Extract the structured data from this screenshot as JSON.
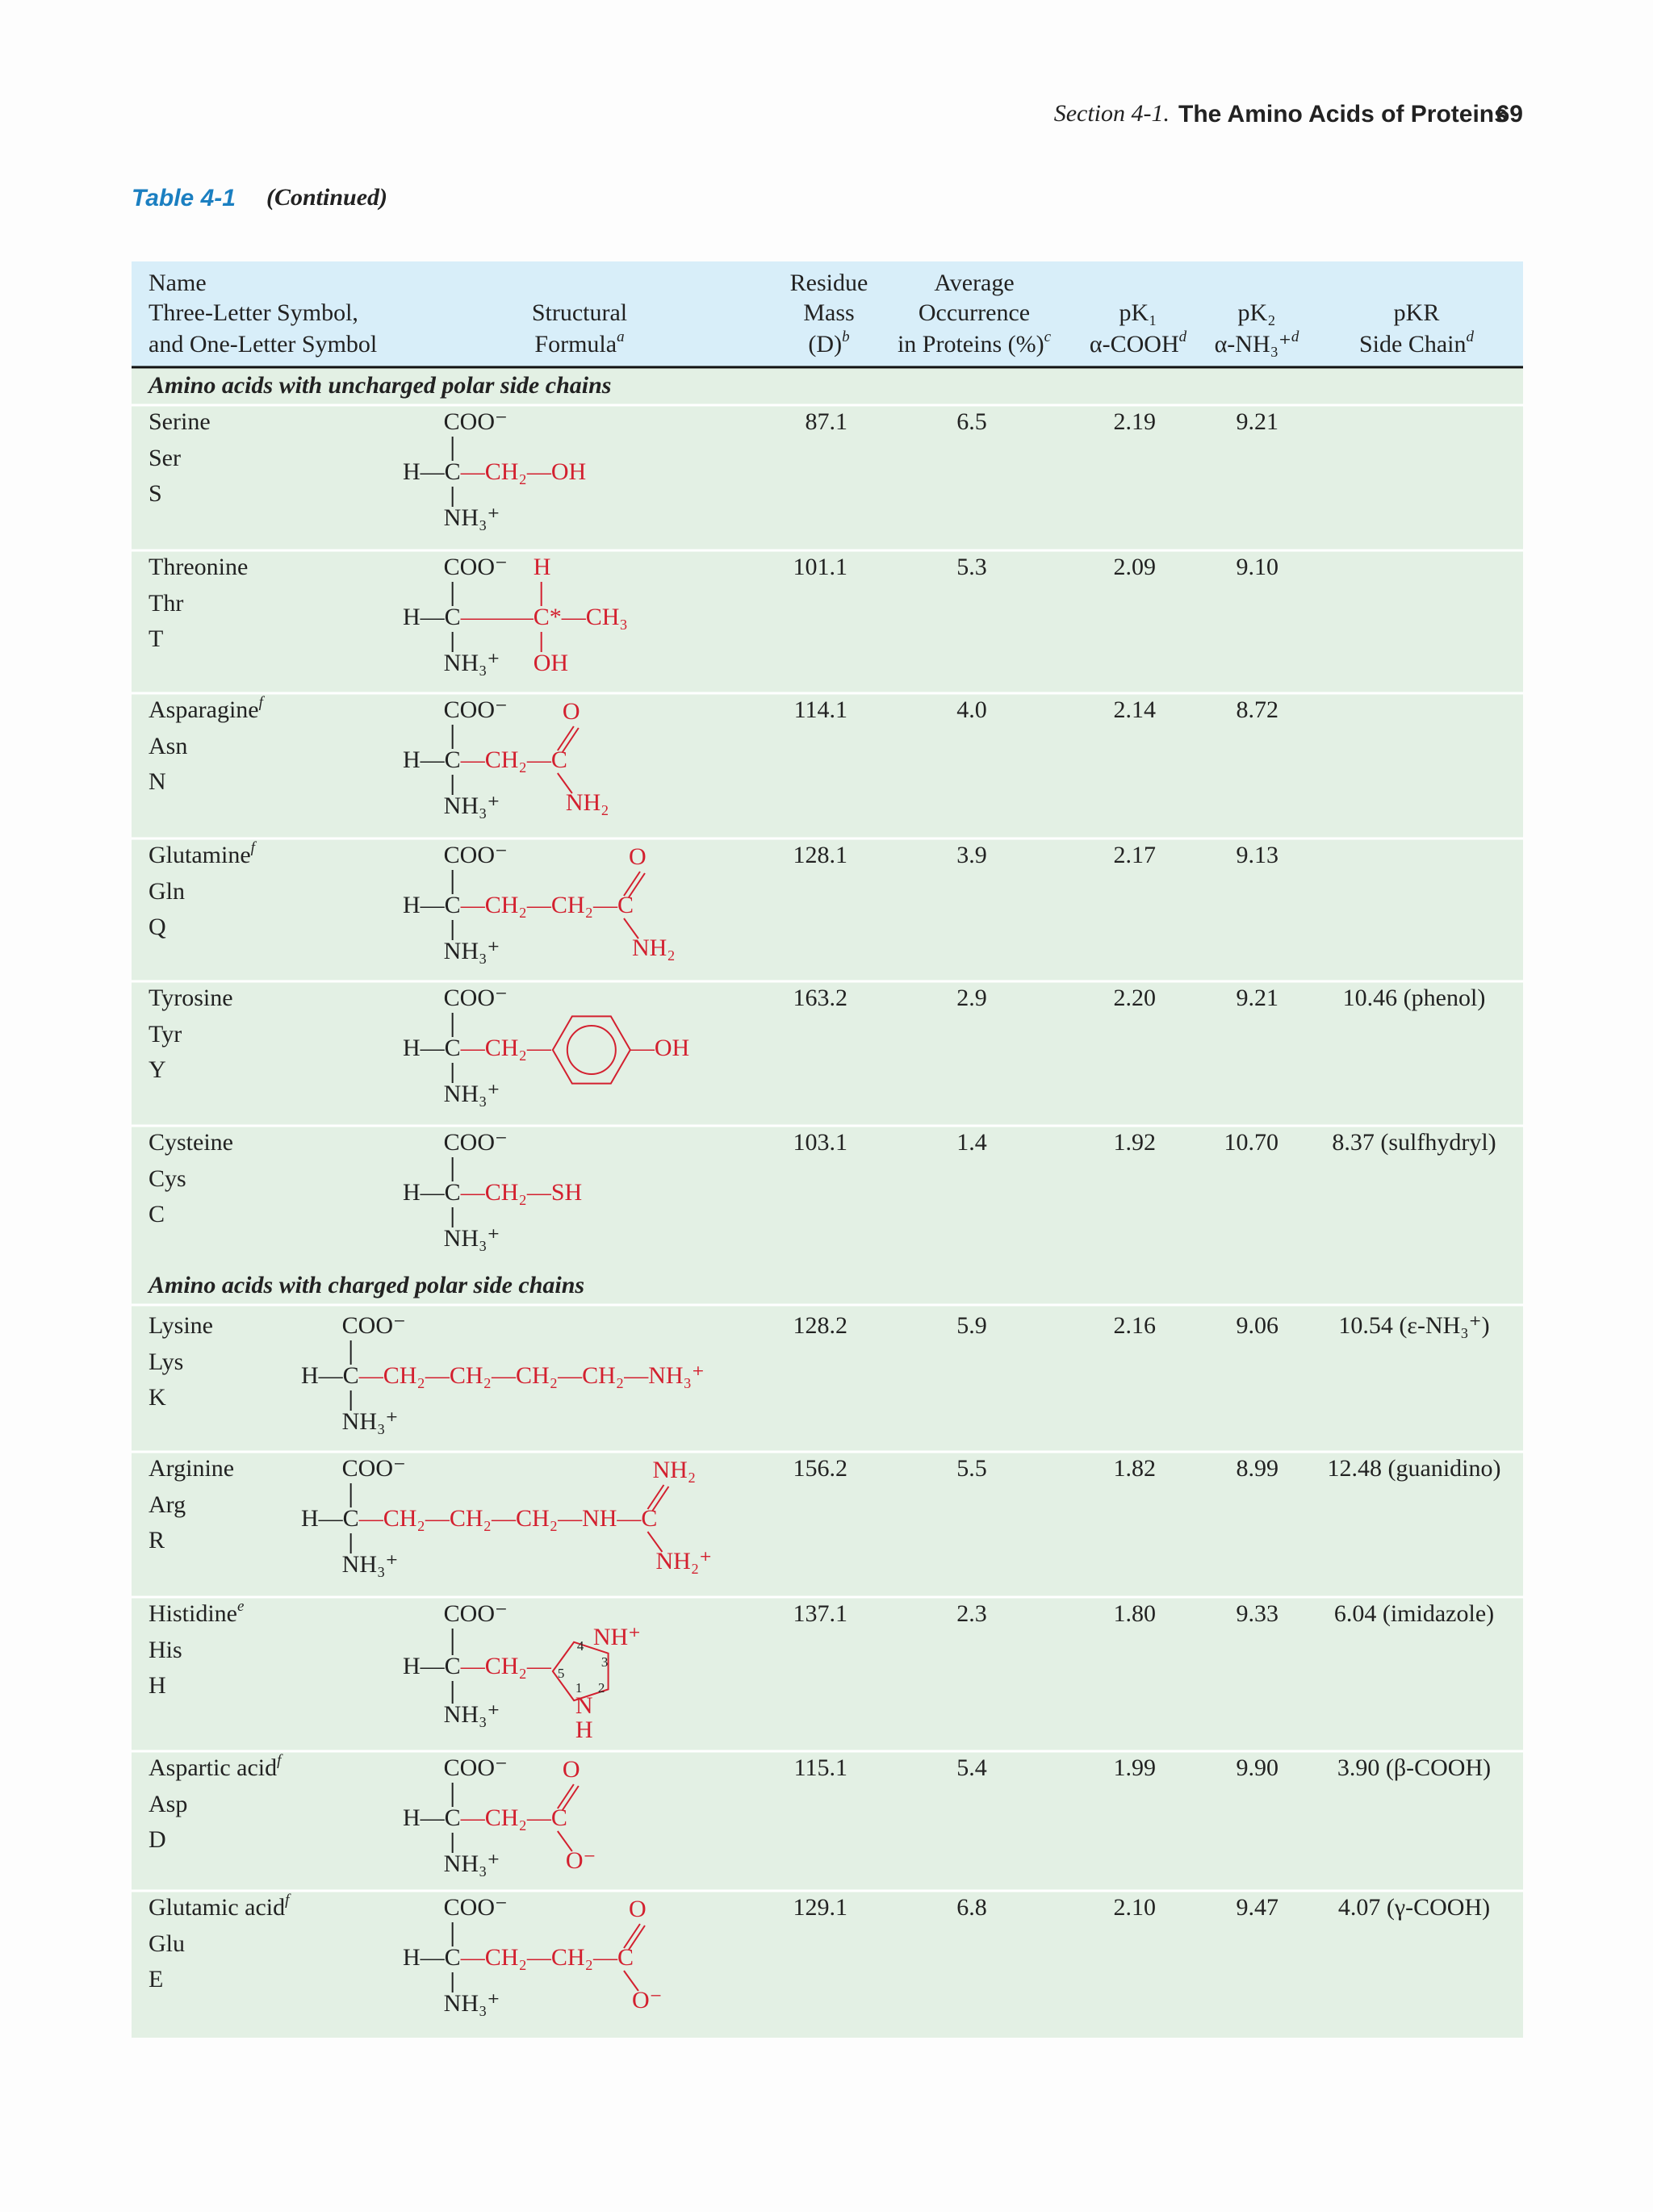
{
  "header": {
    "section": "Section 4-1.",
    "chapter": "The Amino Acids of Proteins",
    "page": "69"
  },
  "table": {
    "label": "Table 4-1",
    "caption": "(Continued)",
    "columns": [
      {
        "lines": [
          "Name",
          "Three-Letter Symbol,",
          "and One-Letter Symbol"
        ]
      },
      {
        "lines": [
          "Structural",
          "Formula"
        ],
        "note": "a"
      },
      {
        "lines": [
          "Residue",
          "Mass",
          "(D)"
        ],
        "note": "b"
      },
      {
        "lines": [
          "Average",
          "Occurrence",
          "in Proteins (%)"
        ],
        "note": "c"
      },
      {
        "lines": [
          "pK₁",
          "α-COOH"
        ],
        "note": "d"
      },
      {
        "lines": [
          "pK₂",
          "α-NH₃⁺"
        ],
        "note": "d"
      },
      {
        "lines": [
          "pKR",
          "Side Chain"
        ],
        "note": "d"
      }
    ],
    "sections": [
      {
        "title": "Amino acids with uncharged polar side chains",
        "rows": [
          {
            "name": "Serine",
            "three": "Ser",
            "one": "S",
            "formula": {
              "top": "COO⁻",
              "core": "H—C",
              "chain": "—CH₂—OH",
              "bottom": "NH₃⁺"
            },
            "mass": "87.1",
            "occurrence": "6.5",
            "pk1": "2.19",
            "pk2": "9.21"
          },
          {
            "name": "Threonine",
            "three": "Thr",
            "one": "T",
            "formula": {
              "top": "COO⁻",
              "core": "H—C",
              "chain": "———C*—CH₃",
              "bottom": "NH₃⁺",
              "upper": "H",
              "lower": "OH"
            },
            "mass": "101.1",
            "occurrence": "5.3",
            "pk1": "2.09",
            "pk2": "9.10"
          },
          {
            "name": "Asparagine",
            "note": "f",
            "three": "Asn",
            "one": "N",
            "formula": {
              "top": "COO⁻",
              "core": "H—C",
              "chain": "—CH₂—C",
              "bottom": "NH₃⁺",
              "upper": "O",
              "lower": "NH₂"
            },
            "mass": "114.1",
            "occurrence": "4.0",
            "pk1": "2.14",
            "pk2": "8.72"
          },
          {
            "name": "Glutamine",
            "note": "f",
            "three": "Gln",
            "one": "Q",
            "formula": {
              "top": "COO⁻",
              "core": "H—C",
              "chain": "—CH₂—CH₂—C",
              "bottom": "NH₃⁺",
              "upper": "O",
              "lower": "NH₂"
            },
            "mass": "128.1",
            "occurrence": "3.9",
            "pk1": "2.17",
            "pk2": "9.13"
          },
          {
            "name": "Tyrosine",
            "three": "Tyr",
            "one": "Y",
            "formula": {
              "top": "COO⁻",
              "core": "H—C",
              "chain": "—CH₂—",
              "bottom": "NH₃⁺",
              "tail": "—OH"
            },
            "mass": "163.2",
            "occurrence": "2.9",
            "pk1": "2.20",
            "pk2": "9.21",
            "pkr": "10.46 (phenol)"
          },
          {
            "name": "Cysteine",
            "three": "Cys",
            "one": "C",
            "formula": {
              "top": "COO⁻",
              "core": "H—C",
              "chain": "—CH₂—SH",
              "bottom": "NH₃⁺"
            },
            "mass": "103.1",
            "occurrence": "1.4",
            "pk1": "1.92",
            "pk2": "10.70",
            "pkr": "8.37 (sulfhydryl)"
          }
        ]
      },
      {
        "title": "Amino acids with charged polar side chains",
        "rows": [
          {
            "name": "Lysine",
            "three": "Lys",
            "one": "K",
            "formula": {
              "top": "COO⁻",
              "core": "H—C",
              "chain": "—CH₂—CH₂—CH₂—CH₂—NH₃⁺",
              "bottom": "NH₃⁺"
            },
            "mass": "128.2",
            "occurrence": "5.9",
            "pk1": "2.16",
            "pk2": "9.06",
            "pkr": "10.54 (ε-NH₃⁺)"
          },
          {
            "name": "Arginine",
            "three": "Arg",
            "one": "R",
            "formula": {
              "top": "COO⁻",
              "core": "H—C",
              "chain": "—CH₂—CH₂—CH₂—NH—C",
              "bottom": "NH₃⁺",
              "upper": "NH₂",
              "lower": "NH₂⁺"
            },
            "mass": "156.2",
            "occurrence": "5.5",
            "pk1": "1.82",
            "pk2": "8.99",
            "pkr": "12.48 (guanidino)"
          },
          {
            "name": "Histidine",
            "note": "e",
            "three": "His",
            "one": "H",
            "formula": {
              "top": "COO⁻",
              "core": "H—C",
              "chain": "—CH₂—",
              "bottom": "NH₃⁺",
              "ring_nh": "NH⁺",
              "ring_n": "N",
              "ring_h": "H",
              "ring_numbers": [
                "4",
                "3",
                "5",
                "1",
                "2"
              ]
            },
            "mass": "137.1",
            "occurrence": "2.3",
            "pk1": "1.80",
            "pk2": "9.33",
            "pkr": "6.04 (imidazole)"
          },
          {
            "name": "Aspartic acid",
            "note": "f",
            "three": "Asp",
            "one": "D",
            "formula": {
              "top": "COO⁻",
              "core": "H—C",
              "chain": "—CH₂—C",
              "bottom": "NH₃⁺",
              "upper": "O",
              "lower": "O⁻"
            },
            "mass": "115.1",
            "occurrence": "5.4",
            "pk1": "1.99",
            "pk2": "9.90",
            "pkr": "3.90 (β-COOH)"
          },
          {
            "name": "Glutamic acid",
            "note": "f",
            "three": "Glu",
            "one": "E",
            "formula": {
              "top": "COO⁻",
              "core": "H—C",
              "chain": "—CH₂—CH₂—C",
              "bottom": "NH₃⁺",
              "upper": "O",
              "lower": "O⁻"
            },
            "mass": "129.1",
            "occurrence": "6.8",
            "pk1": "2.10",
            "pk2": "9.47",
            "pkr": "4.07 (γ-COOH)"
          }
        ]
      }
    ]
  }
}
